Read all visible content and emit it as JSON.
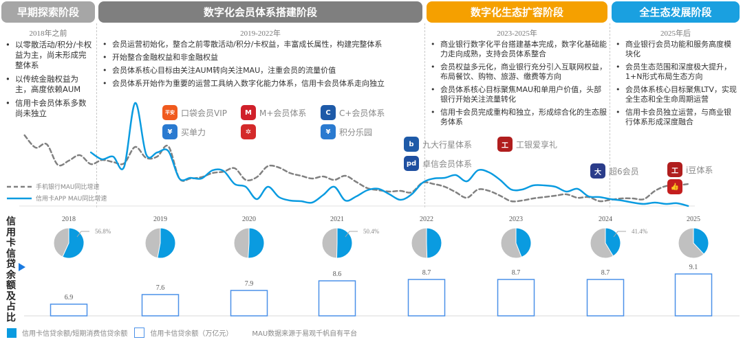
{
  "stages": [
    {
      "title": "早期探索阶段",
      "period": "2018年之前",
      "color": "#a6a6a6",
      "bullets": [
        "以零散活动/积分/卡权益为主，尚未形成完整体系",
        "以传统金融权益为主，高度依赖AUM",
        "信用卡会员体系多数尚未独立"
      ]
    },
    {
      "title": "数字化会员体系搭建阶段",
      "period": "2019-2022年",
      "color": "#7f7f7f",
      "bullets": [
        "会员运营初始化，整合之前零散活动/积分/卡权益，丰富成长属性，构建完整体系",
        "开始整合金融权益和非金融权益",
        "会员体系核心目标由关注AUM转向关注MAU，注重会员的流量价值",
        "会员体系开始作为重要的运营工具纳入数字化能力体系，信用卡会员体系走向独立"
      ]
    },
    {
      "title": "数字化生态扩容阶段",
      "period": "2023-2025年",
      "color": "#f5a000",
      "bullets": [
        "商业银行数字化平台搭建基本完成，数字化基础能力走向成熟，支持会员体系整合",
        "会员权益多元化，商业银行充分引入互联网权益，布局餐饮、购物、旅游、缴费等方向",
        "会员体系核心目标聚焦MAU和单用户价值，头部银行开始关注流量转化",
        "信用卡会员完成重构和独立，形成综合化的生态服务体系"
      ]
    },
    {
      "title": "全生态发展阶段",
      "period": "2025年后",
      "color": "#1aa0e0",
      "bullets": [
        "商业银行会员功能和服务高度模块化",
        "会员生态范围和深度极大提升，1+N形式布局生态方向",
        "会员体系核心目标聚焦LTV，实现全生态和全生命周期运营",
        "信用卡会员独立运营，与商业银行体系形成深度融合"
      ]
    }
  ],
  "programs": [
    {
      "name": "口袋会员VIP",
      "icon": "pingan-bank-icon",
      "logo_text": "平安银行",
      "color": "#f05a1e"
    },
    {
      "name": "M+会员体系",
      "icon": "cmb-icon",
      "logo_text": "M",
      "color": "#d0202a"
    },
    {
      "name": "C+会员体系",
      "icon": "ccb-icon",
      "logo_text": "C",
      "color": "#1e5aa8"
    },
    {
      "name": "买单力",
      "icon": "bocom-icon",
      "logo_text": "¥",
      "color": "#2a7ad0"
    },
    {
      "name": "",
      "icon": "citic-icon",
      "logo_text": "✲",
      "color": "#d42a2a"
    },
    {
      "name": "积分乐园",
      "icon": "bocom-icon",
      "logo_text": "¥",
      "color": "#2a7ad0"
    },
    {
      "name": "九大行星体系",
      "icon": "bank-b-icon",
      "logo_text": "b",
      "color": "#1e5aa8"
    },
    {
      "name": "卓信会员体系",
      "icon": "spdb-icon",
      "logo_text": "pd",
      "color": "#1e4fa0"
    },
    {
      "name": "工银爱享礼",
      "icon": "icbc-icon",
      "logo_text": "工",
      "color": "#b01e1e"
    },
    {
      "name": "超6会员",
      "icon": "game-icon",
      "logo_text": "大",
      "color": "#2a3c8a"
    },
    {
      "name": "i豆体系",
      "icon": "icbc-icon",
      "logo_text": "工",
      "color": "#b01e1e"
    },
    {
      "name": "",
      "icon": "thumbs-up-icon",
      "logo_text": "👍",
      "color": "#c41e1e"
    }
  ],
  "line_legend": {
    "gray": "手机银行MAU同比增速",
    "blue": "信用卡APP MAU同比增速"
  },
  "vertical_title": "信用卡信贷余额及占比",
  "bottom_legend": {
    "share": "信用卡信贷余额/短期消费信贷余额",
    "balance": "信用卡信贷余额（万亿元）",
    "note": "MAU数据来源于易观千帆自有平台"
  },
  "chart_data": [
    {
      "type": "line",
      "x_unit": "year",
      "x": [
        2017.5,
        2017.625,
        2017.75,
        2017.875,
        2018,
        2018.125,
        2018.25,
        2018.375,
        2018.5,
        2018.625,
        2018.75,
        2018.875,
        2019,
        2019.125,
        2019.25,
        2019.375,
        2019.5,
        2019.625,
        2019.75,
        2019.875,
        2020,
        2020.125,
        2020.25,
        2020.375,
        2020.5,
        2020.625,
        2020.75,
        2020.875,
        2021,
        2021.125,
        2021.25,
        2021.375,
        2021.5,
        2021.625,
        2021.75,
        2021.875,
        2022,
        2022.125,
        2022.25,
        2022.375,
        2022.5,
        2022.625,
        2022.75,
        2022.875,
        2023,
        2023.125,
        2023.25,
        2023.375,
        2023.5,
        2023.625,
        2023.75,
        2023.875,
        2024,
        2024.125,
        2024.25,
        2024.375,
        2024.5,
        2024.625,
        2024.75,
        2024.875,
        2025
      ],
      "ylim": [
        0,
        155
      ],
      "grid": false,
      "legend": "bottom-left",
      "series": [
        {
          "name": "手机银行MAU同比增速",
          "color": "#808080",
          "style": "dashed",
          "values": [
            103,
            85,
            90,
            60,
            66,
            74,
            61,
            67,
            64,
            62,
            86,
            70,
            72,
            87,
            40,
            40,
            42,
            48,
            50,
            55,
            38,
            42,
            58,
            56,
            48,
            44,
            40,
            43,
            38,
            44,
            35,
            26,
            23,
            21,
            22,
            20,
            34,
            32,
            28,
            20,
            12,
            24,
            22,
            15,
            7,
            8,
            11,
            13,
            15,
            17,
            12,
            13,
            7,
            9,
            11,
            11,
            10,
            22,
            29,
            30,
            32
          ]
        },
        {
          "name": "信用卡APP MAU同比增速",
          "color": "#0a9be0",
          "style": "solid",
          "values": [
            null,
            null,
            null,
            null,
            null,
            null,
            78,
            68,
            72,
            57,
            150,
            75,
            78,
            80,
            40,
            41,
            40,
            52,
            51,
            32,
            28,
            10,
            28,
            13,
            8,
            7,
            5,
            16,
            28,
            8,
            14,
            23,
            25,
            17,
            9,
            17,
            34,
            40,
            41,
            45,
            36,
            52,
            49,
            38,
            24,
            24,
            30,
            30,
            28,
            21,
            25,
            14,
            13,
            10,
            8,
            5,
            3,
            5,
            3,
            4,
            0
          ]
        }
      ]
    },
    {
      "type": "pie",
      "categories": [
        "2018",
        "2019",
        "2020",
        "2021",
        "2022",
        "2023",
        "2024",
        "2025"
      ],
      "share_pct": [
        56.8,
        53,
        51,
        50.4,
        49.5,
        44,
        41.4,
        38
      ],
      "labels": [
        "56.8%",
        "",
        "",
        "50.4%",
        "",
        "",
        "41.4%",
        ""
      ],
      "colors": {
        "share": "#0a9be0",
        "rest": "#c0c0c0"
      }
    },
    {
      "type": "bar",
      "categories": [
        "2018",
        "2019",
        "2020",
        "2021",
        "2022",
        "2023",
        "2024",
        "2025"
      ],
      "values": [
        6.9,
        7.6,
        7.9,
        8.6,
        8.7,
        8.7,
        8.7,
        9.1
      ],
      "labels": [
        "6.9",
        "7.6",
        "7.9",
        "8.6",
        "8.7",
        "8.7",
        "8.7",
        "9.1"
      ],
      "ylabel": "信用卡信贷余额（万亿元）",
      "bar_style": "hollow",
      "color": "#4a90e8"
    }
  ]
}
